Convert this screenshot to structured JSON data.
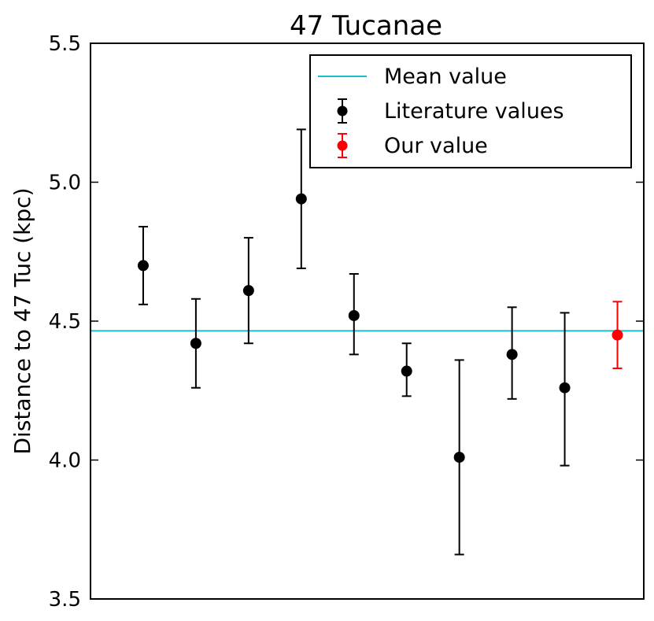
{
  "chart_data": {
    "type": "scatter",
    "title": "47 Tucanae",
    "xlabel": "",
    "ylabel": "Distance to 47 Tuc (kpc)",
    "ylim": [
      3.5,
      5.5
    ],
    "xlim": [
      0,
      10.5
    ],
    "yticks": [
      "3.5",
      "4.0",
      "4.5",
      "5.0",
      "5.5"
    ],
    "grid": false,
    "legend_position": "top-right",
    "mean_value": 4.465,
    "series": [
      {
        "name": "Literature values",
        "color": "#000000",
        "x": [
          1,
          2,
          3,
          4,
          5,
          6,
          7,
          8,
          9
        ],
        "y": [
          4.7,
          4.42,
          4.61,
          4.94,
          4.52,
          4.32,
          4.01,
          4.38,
          4.26
        ],
        "err_low": [
          0.14,
          0.16,
          0.19,
          0.25,
          0.14,
          0.09,
          0.35,
          0.16,
          0.28
        ],
        "err_high": [
          0.14,
          0.16,
          0.19,
          0.25,
          0.15,
          0.1,
          0.35,
          0.17,
          0.27
        ]
      },
      {
        "name": "Our value",
        "color": "#ff0000",
        "x": [
          10
        ],
        "y": [
          4.45
        ],
        "err_low": [
          0.12
        ],
        "err_high": [
          0.12
        ]
      }
    ],
    "legend": [
      {
        "label": "Mean value",
        "kind": "line",
        "color": "#17becf"
      },
      {
        "label": "Literature values",
        "kind": "errorbar",
        "color": "#000000"
      },
      {
        "label": "Our value",
        "kind": "errorbar",
        "color": "#ff0000"
      }
    ]
  }
}
